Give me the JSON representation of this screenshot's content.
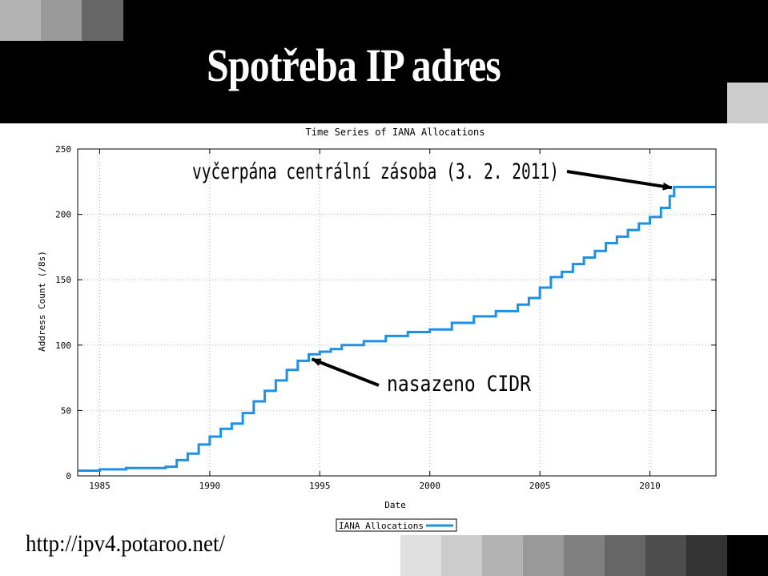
{
  "slide": {
    "title": "Spotřeba IP adres",
    "url": "http://ipv4.potaroo.net/"
  },
  "colors": {
    "header_bg": "#000000",
    "series": "#1e90e6",
    "header_squares": [
      "#b3b3b3",
      "#999999",
      "#666666"
    ],
    "header_square_right": "#cccccc",
    "footer_squares": [
      "#e0e0e0",
      "#cccccc",
      "#b3b3b3",
      "#999999",
      "#808080",
      "#666666",
      "#4d4d4d",
      "#333333",
      "#000000"
    ]
  },
  "chart_data": {
    "type": "line",
    "title": "Time Series of IANA Allocations",
    "xlabel": "Date",
    "ylabel": "Address Count (/8s)",
    "xlim": [
      1984,
      2013
    ],
    "ylim": [
      0,
      250
    ],
    "xticks": [
      1985,
      1990,
      1995,
      2000,
      2005,
      2010
    ],
    "yticks": [
      0,
      50,
      100,
      150,
      200,
      250
    ],
    "grid": true,
    "legend": "bottom-right",
    "series": [
      {
        "name": "IANA Allocations",
        "step": true,
        "x": [
          1984.0,
          1985.0,
          1986.2,
          1988.0,
          1988.5,
          1989.0,
          1989.5,
          1990.0,
          1990.5,
          1991.0,
          1991.5,
          1992.0,
          1992.5,
          1993.0,
          1993.5,
          1994.0,
          1994.5,
          1995.0,
          1995.5,
          1996.0,
          1997.0,
          1998.0,
          1999.0,
          2000.0,
          2001.0,
          2002.0,
          2003.0,
          2004.0,
          2004.5,
          2005.0,
          2005.5,
          2006.0,
          2006.5,
          2007.0,
          2007.5,
          2008.0,
          2008.5,
          2009.0,
          2009.5,
          2010.0,
          2010.5,
          2010.9,
          2011.1,
          2013.0
        ],
        "y": [
          4,
          5,
          6,
          7,
          12,
          17,
          24,
          30,
          36,
          40,
          48,
          57,
          65,
          73,
          81,
          88,
          93,
          95,
          97,
          100,
          103,
          107,
          110,
          112,
          117,
          122,
          126,
          131,
          136,
          144,
          152,
          156,
          162,
          167,
          172,
          178,
          183,
          188,
          193,
          198,
          205,
          214,
          221,
          221
        ]
      }
    ],
    "annotations": [
      {
        "text": "vyčerpána centrální zásoba (3. 2. 2011)",
        "x": 2011.1,
        "y": 221
      },
      {
        "text": "nasazeno CIDR",
        "x": 1994.5,
        "y": 93
      }
    ]
  }
}
